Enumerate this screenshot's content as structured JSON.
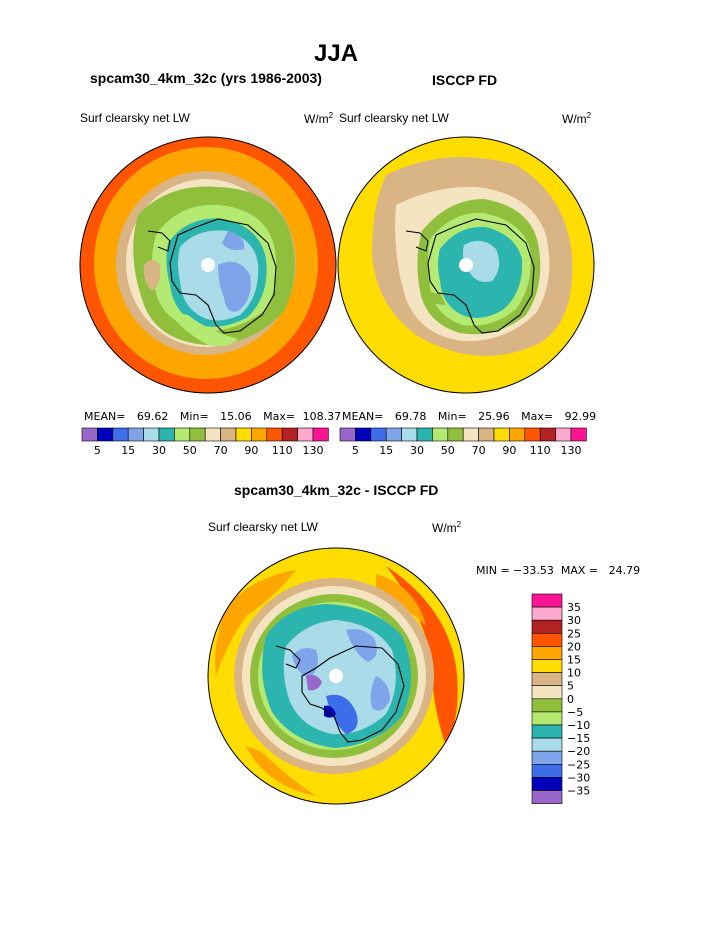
{
  "page_title": "JJA",
  "panels": {
    "left": {
      "title": "spcam30_4km_32c (yrs 1986-2003)",
      "variable": "Surf clearsky net LW",
      "units": "W/m",
      "units_sup": "2",
      "stats": {
        "mean_label": "MEAN=",
        "mean": "69.62",
        "min_label": "Min=",
        "min": "15.06",
        "max_label": "Max=",
        "max": "108.37"
      }
    },
    "right": {
      "title": "ISCCP FD",
      "variable": "Surf clearsky net LW",
      "units": "W/m",
      "units_sup": "2",
      "stats": {
        "mean_label": "MEAN=",
        "mean": "69.78",
        "min_label": "Min=",
        "min": "25.96",
        "max_label": "Max=",
        "max": "92.99"
      }
    },
    "diff": {
      "title": "spcam30_4km_32c - ISCCP FD",
      "variable": "Surf clearsky net LW",
      "units": "W/m",
      "units_sup": "2",
      "minmax_text": "MIN = −33.53  MAX =   24.79"
    }
  },
  "chart_data": [
    {
      "type": "heatmap",
      "projection": "south-polar-stereographic",
      "title": "spcam30_4km_32c (yrs 1986-2003)",
      "variable": "Surf clearsky net LW",
      "units": "W/m2",
      "mean": 69.62,
      "min": 15.06,
      "max": 108.37,
      "colorbar": {
        "tick_labels": [
          "5",
          "15",
          "30",
          "50",
          "70",
          "90",
          "110",
          "130"
        ],
        "levels": [
          5,
          10,
          15,
          20,
          25,
          30,
          40,
          50,
          60,
          70,
          80,
          90,
          100,
          110,
          120,
          130
        ],
        "colors": [
          "#9966cc",
          "#0000bb",
          "#3d6de8",
          "#7fa4ea",
          "#a9dbe8",
          "#2bb5ae",
          "#b5ea72",
          "#8fbf3c",
          "#f5e4c2",
          "#d9b585",
          "#ffdd00",
          "#ffa500",
          "#ff5500",
          "#b22222",
          "#ffaacc",
          "#ff1493"
        ]
      }
    },
    {
      "type": "heatmap",
      "projection": "south-polar-stereographic",
      "title": "ISCCP FD",
      "variable": "Surf clearsky net LW",
      "units": "W/m2",
      "mean": 69.78,
      "min": 25.96,
      "max": 92.99,
      "colorbar": {
        "tick_labels": [
          "5",
          "15",
          "30",
          "50",
          "70",
          "90",
          "110",
          "130"
        ],
        "levels": [
          5,
          10,
          15,
          20,
          25,
          30,
          40,
          50,
          60,
          70,
          80,
          90,
          100,
          110,
          120,
          130
        ],
        "colors": [
          "#9966cc",
          "#0000bb",
          "#3d6de8",
          "#7fa4ea",
          "#a9dbe8",
          "#2bb5ae",
          "#b5ea72",
          "#8fbf3c",
          "#f5e4c2",
          "#d9b585",
          "#ffdd00",
          "#ffa500",
          "#ff5500",
          "#b22222",
          "#ffaacc",
          "#ff1493"
        ]
      }
    },
    {
      "type": "heatmap",
      "projection": "south-polar-stereographic",
      "title": "spcam30_4km_32c - ISCCP FD",
      "variable": "Surf clearsky net LW",
      "units": "W/m2",
      "min": -33.53,
      "max": 24.79,
      "colorbar": {
        "tick_labels": [
          "35",
          "30",
          "25",
          "20",
          "15",
          "10",
          "5",
          "0",
          "−5",
          "−10",
          "−15",
          "−20",
          "−25",
          "−30",
          "−35"
        ],
        "colors": [
          "#ff1493",
          "#ffaacc",
          "#b22222",
          "#ff5500",
          "#ffa500",
          "#ffdd00",
          "#d9b585",
          "#f5e4c2",
          "#8fbf3c",
          "#b5ea72",
          "#2bb5ae",
          "#a9dbe8",
          "#7fa4ea",
          "#3d6de8",
          "#0000bb",
          "#9966cc"
        ]
      }
    }
  ]
}
